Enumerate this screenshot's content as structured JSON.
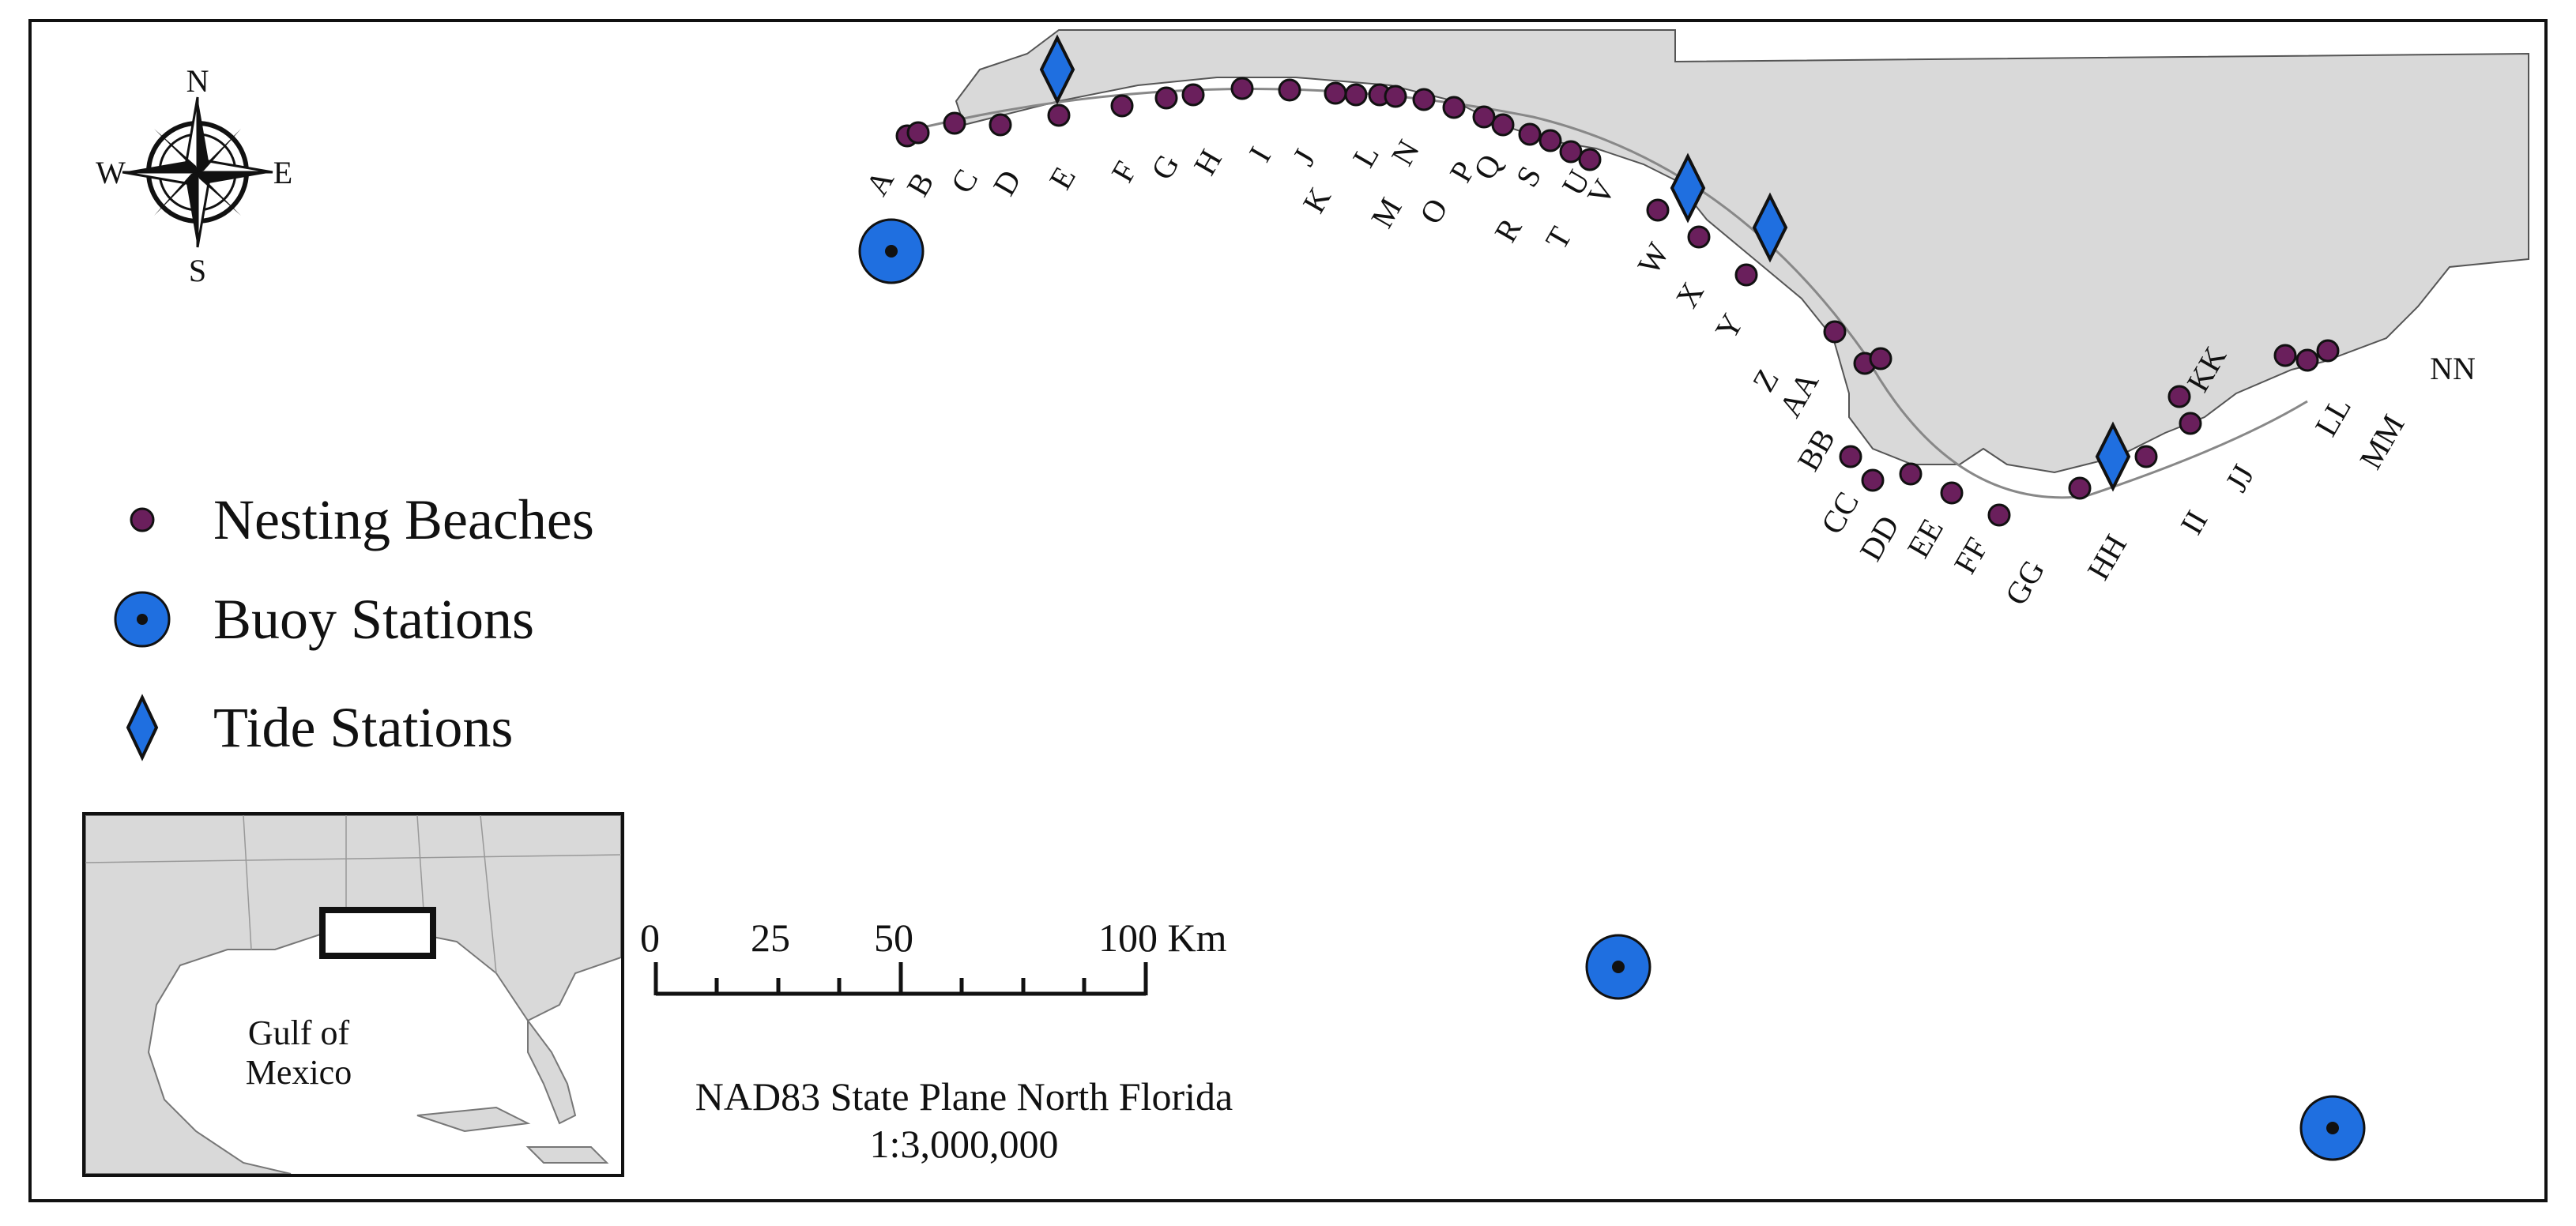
{
  "compass": {
    "n": "N",
    "s": "S",
    "e": "E",
    "w": "W"
  },
  "legend": {
    "nesting": "Nesting Beaches",
    "buoy": "Buoy Stations",
    "tide": "Tide Stations"
  },
  "colors": {
    "beach_fill": "#6a1f5c",
    "station_fill": "#1f6fe0",
    "land": "#d9d9d9",
    "outline": "#111111"
  },
  "beaches": [
    "A",
    "B",
    "C",
    "D",
    "E",
    "F",
    "G",
    "H",
    "I",
    "J",
    "K",
    "L",
    "M",
    "N",
    "O",
    "P",
    "Q",
    "R",
    "S",
    "T",
    "U",
    "V",
    "W",
    "X",
    "Y",
    "Z",
    "AA",
    "BB",
    "CC",
    "DD",
    "EE",
    "FF",
    "GG",
    "HH",
    "II",
    "JJ",
    "KK",
    "LL",
    "MM",
    "NN"
  ],
  "inset": {
    "label_line1": "Gulf of",
    "label_line2": "Mexico"
  },
  "scale": {
    "ticks": [
      "0",
      "25",
      "50",
      "100 Km"
    ]
  },
  "projection": {
    "line1": "NAD83 State Plane North Florida",
    "line2": "1:3,000,000"
  }
}
